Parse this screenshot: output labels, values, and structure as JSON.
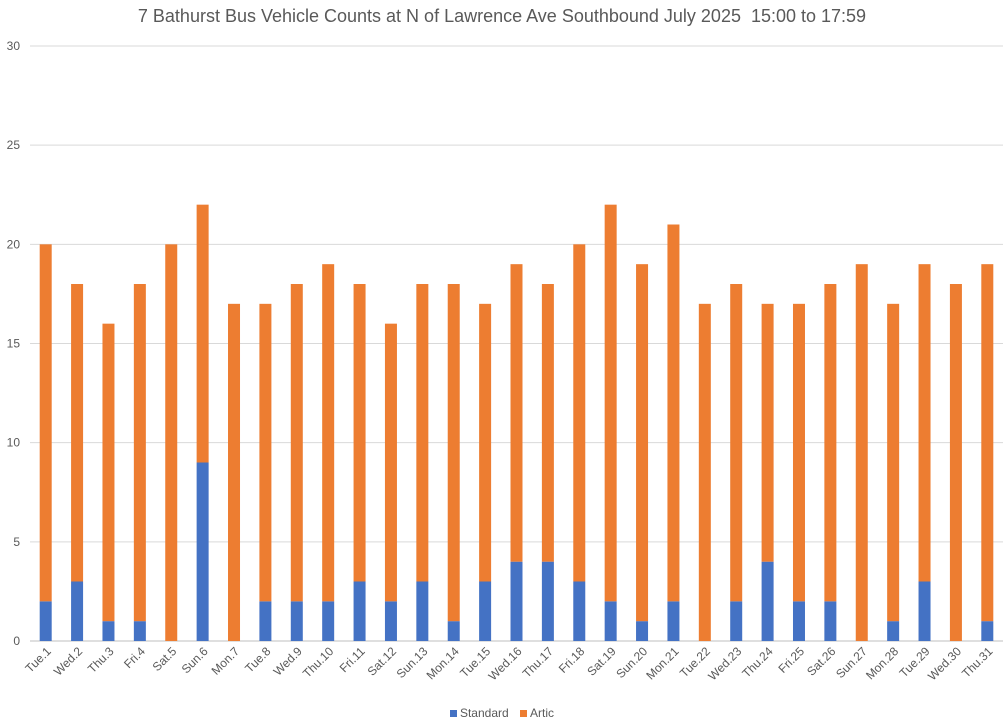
{
  "chart_data": {
    "type": "bar",
    "stacked": true,
    "title": "7 Bathurst Bus Vehicle Counts at N of Lawrence Ave Southbound July 2025  15:00 to 17:59",
    "xlabel": "",
    "ylabel": "",
    "ylim": [
      0,
      30
    ],
    "yticks": [
      0,
      5,
      10,
      15,
      20,
      25,
      30
    ],
    "grid": true,
    "legend_position": "bottom",
    "categories": [
      "Tue.1",
      "Wed.2",
      "Thu.3",
      "Fri.4",
      "Sat.5",
      "Sun.6",
      "Mon.7",
      "Tue.8",
      "Wed.9",
      "Thu.10",
      "Fri.11",
      "Sat.12",
      "Sun.13",
      "Mon.14",
      "Tue.15",
      "Wed.16",
      "Thu.17",
      "Fri.18",
      "Sat.19",
      "Sun.20",
      "Mon.21",
      "Tue.22",
      "Wed.23",
      "Thu.24",
      "Fri.25",
      "Sat.26",
      "Sun.27",
      "Mon.28",
      "Tue.29",
      "Wed.30",
      "Thu.31"
    ],
    "series": [
      {
        "name": "Standard",
        "color": "#4472C4",
        "values": [
          2,
          3,
          1,
          1,
          0,
          9,
          0,
          2,
          2,
          2,
          3,
          2,
          3,
          1,
          3,
          4,
          4,
          3,
          2,
          1,
          2,
          0,
          2,
          4,
          2,
          2,
          0,
          1,
          3,
          0,
          1
        ]
      },
      {
        "name": "Artic",
        "color": "#ED7D31",
        "values": [
          18,
          15,
          15,
          17,
          20,
          13,
          17,
          15,
          16,
          17,
          15,
          14,
          15,
          17,
          14,
          15,
          14,
          17,
          20,
          18,
          19,
          17,
          16,
          13,
          15,
          16,
          19,
          16,
          16,
          18,
          18
        ]
      }
    ]
  }
}
